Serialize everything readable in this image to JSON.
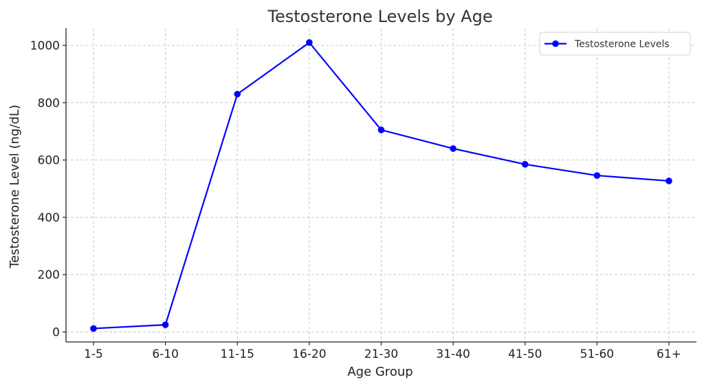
{
  "chart_data": {
    "type": "line",
    "title": "Testosterone Levels by Age",
    "xlabel": "Age Group",
    "ylabel": "Testosterone Level (ng/dL)",
    "categories": [
      "1-5",
      "6-10",
      "11-15",
      "16-20",
      "21-30",
      "31-40",
      "41-50",
      "51-60",
      "61+"
    ],
    "series": [
      {
        "name": "Testosterone Levels",
        "values": [
          12,
          25,
          830,
          1010,
          705,
          640,
          585,
          546,
          527
        ],
        "color": "#0000ff",
        "marker": "circle"
      }
    ],
    "ylim": [
      -35,
      1060
    ],
    "yticks": [
      0,
      200,
      400,
      600,
      800,
      1000
    ],
    "grid": true,
    "legend": "top-right"
  }
}
